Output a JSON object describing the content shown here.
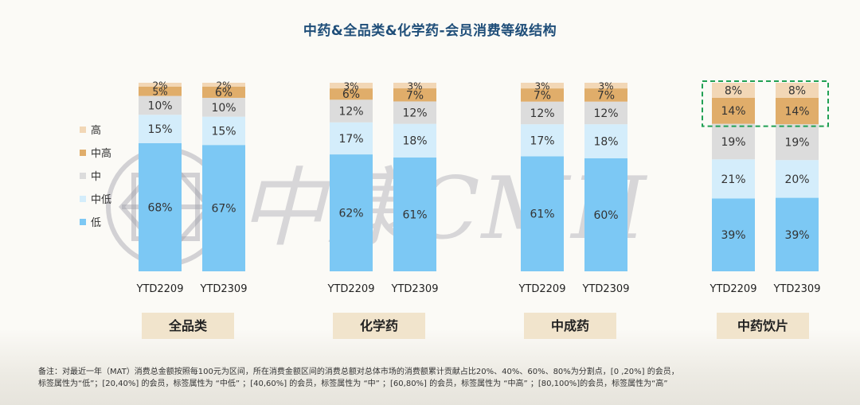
{
  "title": "中药&全品类&化学药-会员消费等级结构",
  "watermark_text": "中康CMH",
  "colors": {
    "低": "#7cc8f4",
    "中低": "#d4edfb",
    "中": "#dcdcdc",
    "中高": "#e0ad6a",
    "高": "#f2d7b6",
    "highlight": "#21a054"
  },
  "legend": [
    "高",
    "中高",
    "中",
    "中低",
    "低"
  ],
  "chart_data": {
    "type": "bar",
    "stacked": true,
    "normalized": true,
    "levels": [
      "低",
      "中低",
      "中",
      "中高",
      "高"
    ],
    "groups": [
      {
        "name": "全品类",
        "bars": [
          {
            "label": "YTD2209",
            "values": [
              68,
              15,
              10,
              5,
              2
            ]
          },
          {
            "label": "YTD2309",
            "values": [
              67,
              15,
              10,
              6,
              2
            ]
          }
        ]
      },
      {
        "name": "化学药",
        "bars": [
          {
            "label": "YTD2209",
            "values": [
              62,
              17,
              12,
              6,
              3
            ]
          },
          {
            "label": "YTD2309",
            "values": [
              61,
              18,
              12,
              7,
              3
            ]
          }
        ]
      },
      {
        "name": "中成药",
        "bars": [
          {
            "label": "YTD2209",
            "values": [
              61,
              17,
              12,
              7,
              3
            ]
          },
          {
            "label": "YTD2309",
            "values": [
              60,
              18,
              12,
              7,
              3
            ]
          }
        ]
      },
      {
        "name": "中药饮片",
        "bars": [
          {
            "label": "YTD2209",
            "values": [
              39,
              21,
              19,
              14,
              8
            ]
          },
          {
            "label": "YTD2309",
            "values": [
              39,
              20,
              19,
              14,
              8
            ]
          }
        ],
        "highlight_levels": [
          "中高",
          "高"
        ]
      }
    ]
  },
  "note_lines": [
    "备注：对最近一年（MAT）消费总金额按照每100元为区间，所在消费金额区间的消费总额对总体市场的消费额累计贡献占比20%、40%、60%、80%为分割点，[0 ,20%] 的会员，",
    "标签属性为“低”；[20,40%] 的会员，标签属性为 “中低” ；[40,60%] 的会员，标签属性为 “中” ；[60,80%] 的会员，标签属性为 “中高” ；[80,100%]的会员，标签属性为“高”"
  ]
}
